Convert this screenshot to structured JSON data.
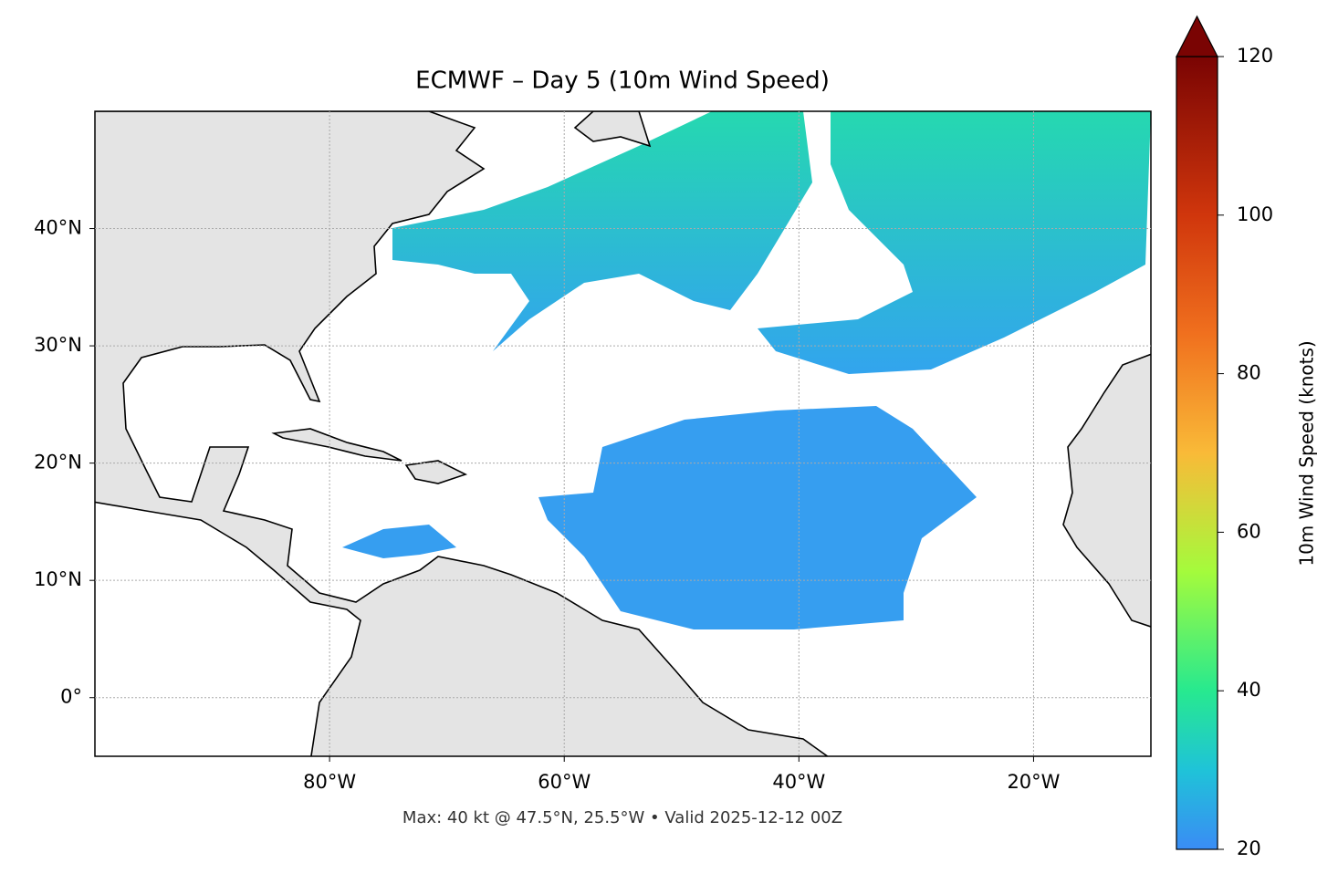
{
  "map": {
    "type": "map",
    "title": "ECMWF – Day 5 (10m Wind Speed)",
    "footnote": "Max: 40 kt @ 47.5°N, 25.5°W • Valid 2025-12-12 00Z",
    "xlim": [
      -100,
      -10
    ],
    "ylim": [
      -5,
      50
    ],
    "xticks": [
      {
        "value": -80,
        "label": "80°W"
      },
      {
        "value": -60,
        "label": "60°W"
      },
      {
        "value": -40,
        "label": "40°W"
      },
      {
        "value": -20,
        "label": "20°W"
      }
    ],
    "yticks": [
      {
        "value": 0,
        "label": "0°"
      },
      {
        "value": 10,
        "label": "10°N"
      },
      {
        "value": 20,
        "label": "20°N"
      },
      {
        "value": 30,
        "label": "30°N"
      },
      {
        "value": 40,
        "label": "40°N"
      }
    ],
    "grid": true
  },
  "colorbar": {
    "label": "10m Wind Speed (knots)",
    "lim": [
      20,
      120
    ],
    "ticks": [
      20,
      40,
      60,
      80,
      100,
      120
    ],
    "extend": "max"
  }
}
